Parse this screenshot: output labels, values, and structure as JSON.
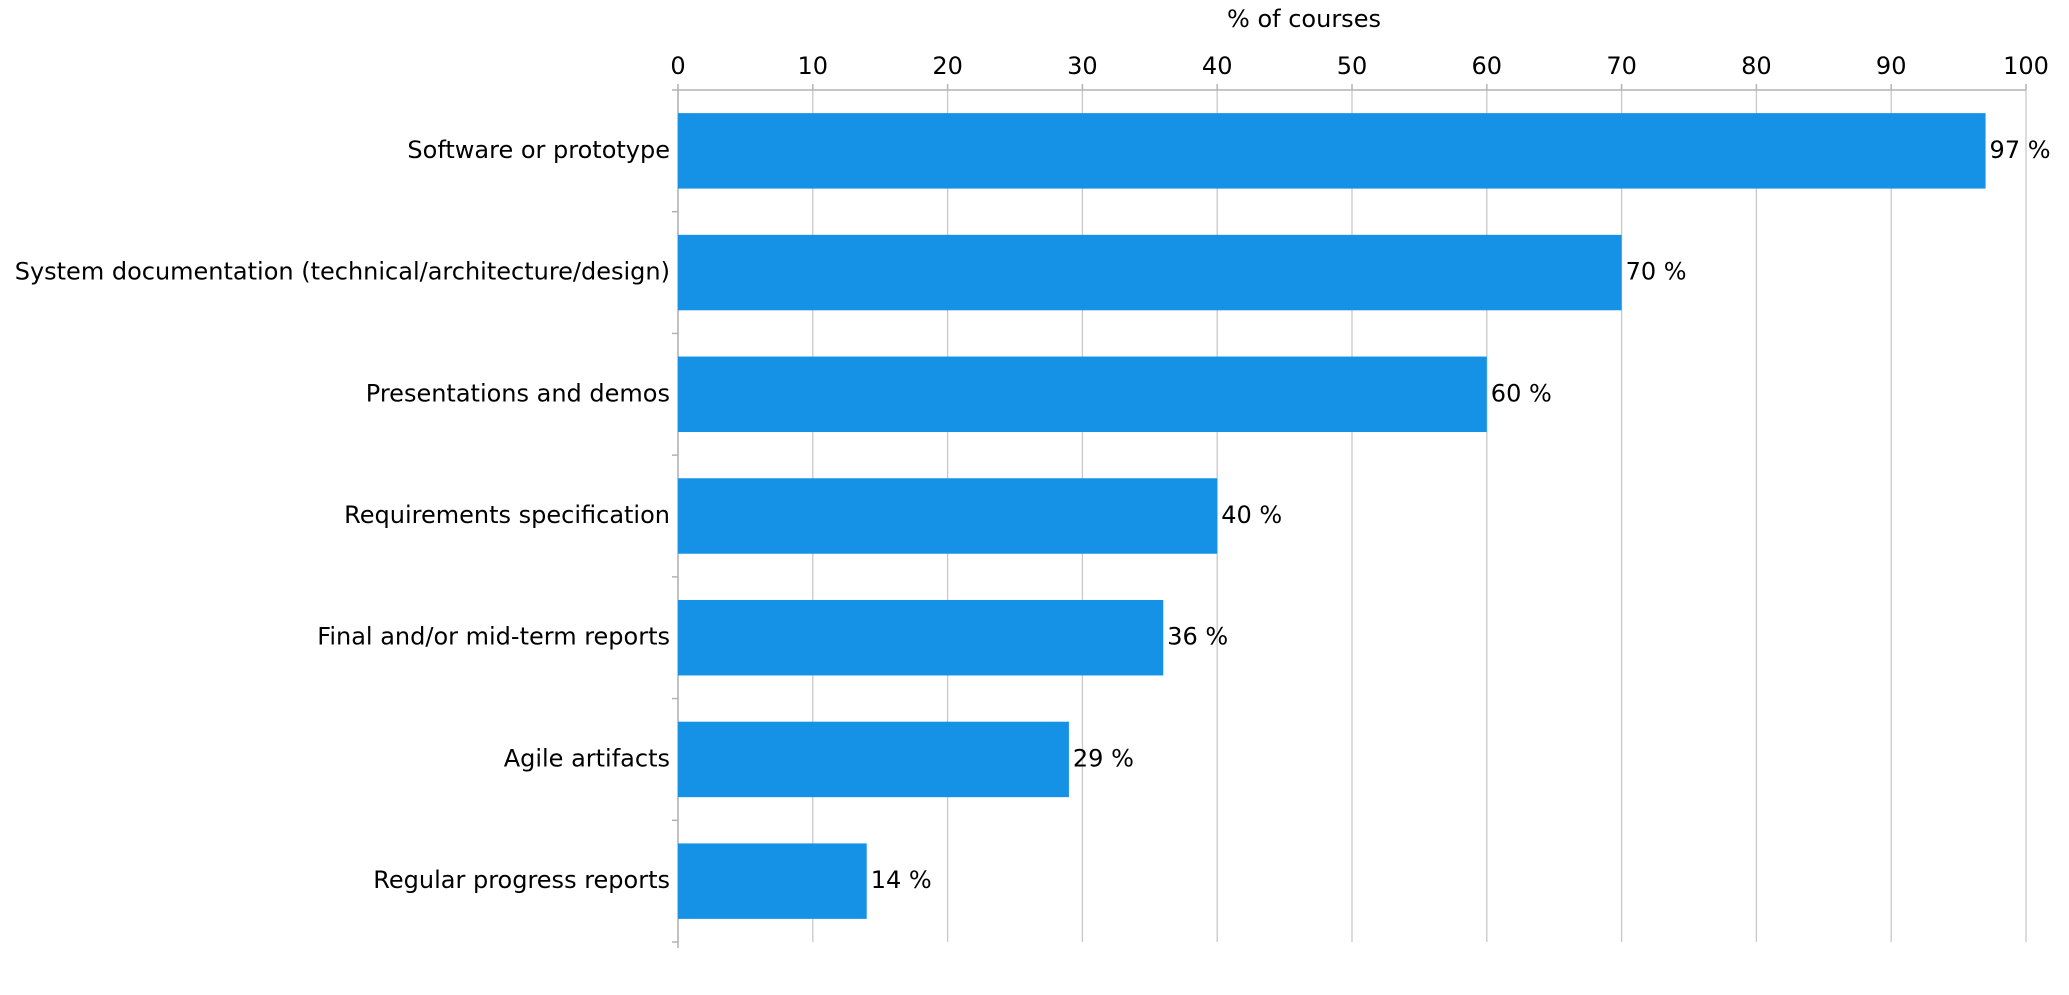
{
  "chart_data": {
    "type": "bar",
    "orientation": "horizontal",
    "x_label": "% of courses",
    "categories": [
      "Software or prototype",
      "System documentation (technical/architecture/design)",
      "Presentations and demos",
      "Requirements specification",
      "Final and/or mid-term reports",
      "Agile artifacts",
      "Regular progress reports"
    ],
    "values": [
      97,
      70,
      60,
      40,
      36,
      29,
      14
    ],
    "value_labels": [
      "97 %",
      "70 %",
      "60 %",
      "40 %",
      "36 %",
      "29 %",
      "14 %"
    ],
    "color": "#1591e6",
    "xlim": [
      0,
      100
    ],
    "xticks": [
      0,
      10,
      20,
      30,
      40,
      50,
      60,
      70,
      80,
      90,
      100
    ],
    "grid": true
  }
}
